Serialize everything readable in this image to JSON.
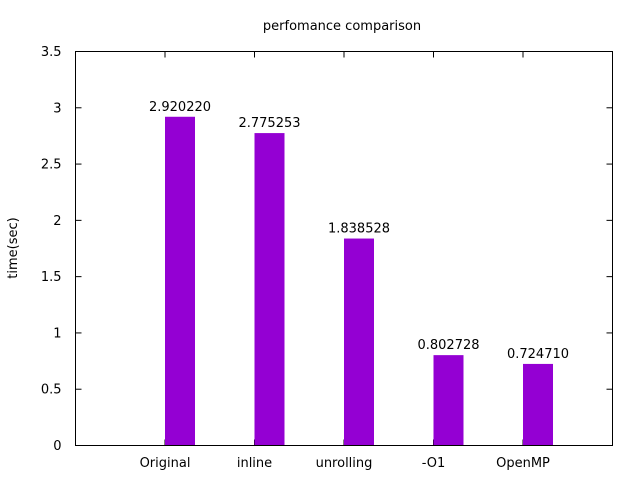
{
  "chart_data": {
    "type": "bar",
    "title": "perfomance comparison",
    "xlabel": "",
    "ylabel": "time(sec)",
    "categories": [
      "Original",
      "inline",
      "unrolling",
      "-O1",
      "OpenMP"
    ],
    "values": [
      2.92022,
      2.775253,
      1.838528,
      0.802728,
      0.72471
    ],
    "data_labels": [
      "2.920220",
      "2.775253",
      "1.838528",
      "0.802728",
      "0.724710"
    ],
    "y_ticks": [
      "0",
      "0.5",
      "1",
      "1.5",
      "2",
      "2.5",
      "3",
      "3.5"
    ],
    "ylim": [
      0,
      3.5
    ],
    "x_range": [
      -1,
      5
    ],
    "bar_color": "#9400d3",
    "grid": false,
    "legend": "none"
  }
}
